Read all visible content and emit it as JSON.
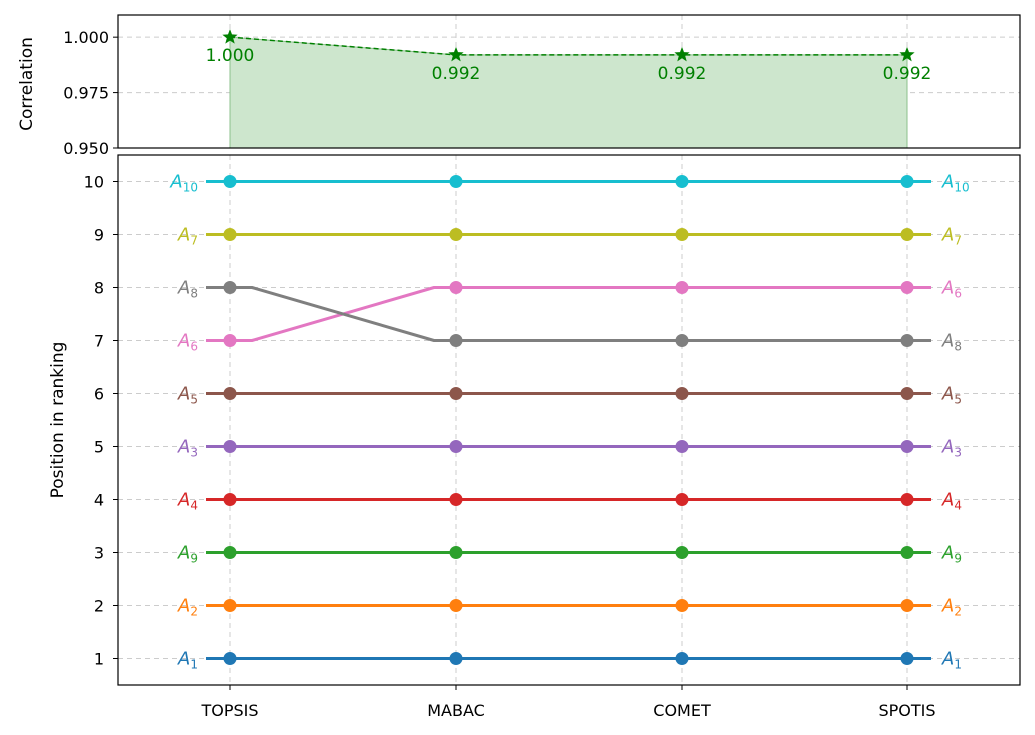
{
  "chart_data": [
    {
      "type": "area",
      "ylabel": "Correlation",
      "ylim": [
        0.95,
        1.01
      ],
      "yticks": [
        0.95,
        0.975,
        1.0
      ],
      "ytick_labels": [
        "0.950",
        "0.975",
        "1.000"
      ],
      "grid": true,
      "color": "#008000",
      "fill_color": "#cde6cd",
      "x": [
        "TOPSIS",
        "MABAC",
        "COMET",
        "SPOTIS"
      ],
      "values": [
        1.0,
        0.992,
        0.992,
        0.992
      ],
      "value_labels": [
        "1.000",
        "0.992",
        "0.992",
        "0.992"
      ]
    },
    {
      "type": "line",
      "xlabel": "",
      "ylabel": "Position in ranking",
      "ylim": [
        0.5,
        10.5
      ],
      "yticks": [
        1,
        2,
        3,
        4,
        5,
        6,
        7,
        8,
        9,
        10
      ],
      "grid": true,
      "categories": [
        "TOPSIS",
        "MABAC",
        "COMET",
        "SPOTIS"
      ],
      "series": [
        {
          "base": "A",
          "sub": "1",
          "color": "#1f77b4",
          "values": [
            1,
            1,
            1,
            1
          ]
        },
        {
          "base": "A",
          "sub": "2",
          "color": "#ff7f0e",
          "values": [
            2,
            2,
            2,
            2
          ]
        },
        {
          "base": "A",
          "sub": "9",
          "color": "#2ca02c",
          "values": [
            3,
            3,
            3,
            3
          ]
        },
        {
          "base": "A",
          "sub": "4",
          "color": "#d62728",
          "values": [
            4,
            4,
            4,
            4
          ]
        },
        {
          "base": "A",
          "sub": "3",
          "color": "#9467bd",
          "values": [
            5,
            5,
            5,
            5
          ]
        },
        {
          "base": "A",
          "sub": "5",
          "color": "#8c564b",
          "values": [
            6,
            6,
            6,
            6
          ]
        },
        {
          "base": "A",
          "sub": "6",
          "color": "#e377c2",
          "values": [
            7,
            8,
            8,
            8
          ]
        },
        {
          "base": "A",
          "sub": "8",
          "color": "#7f7f7f",
          "values": [
            8,
            7,
            7,
            7
          ]
        },
        {
          "base": "A",
          "sub": "7",
          "color": "#bcbd22",
          "values": [
            9,
            9,
            9,
            9
          ]
        },
        {
          "base": "A",
          "sub": "10",
          "color": "#17becf",
          "values": [
            10,
            10,
            10,
            10
          ]
        }
      ]
    }
  ]
}
